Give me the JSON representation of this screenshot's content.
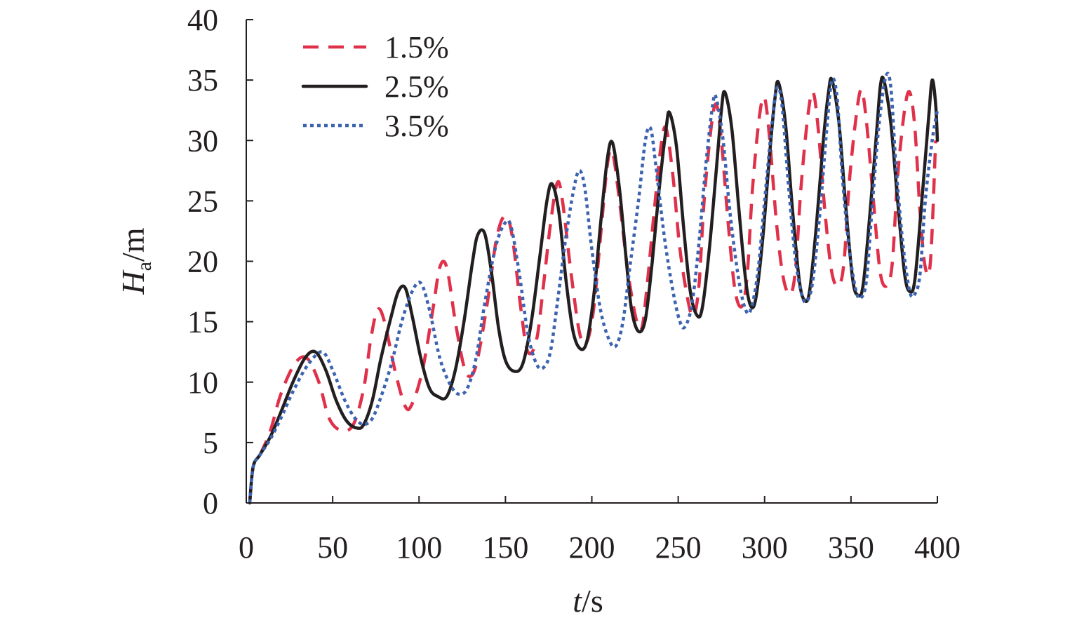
{
  "chart_data": {
    "type": "line",
    "title": "",
    "xlabel": {
      "var": "t",
      "unit": "/s"
    },
    "ylabel": {
      "var": "H",
      "sub": "a",
      "unit": "/m"
    },
    "xlim": [
      0,
      400
    ],
    "ylim": [
      0,
      40
    ],
    "xticks": [
      0,
      50,
      100,
      150,
      200,
      250,
      300,
      350,
      400
    ],
    "yticks": [
      0,
      5,
      10,
      15,
      20,
      25,
      30,
      35,
      40
    ],
    "grid": false,
    "legend_position": "top-left",
    "series": [
      {
        "name": "1.5%",
        "color": "#e0314b",
        "style": "dashed",
        "points": [
          [
            2,
            0
          ],
          [
            4,
            3
          ],
          [
            8,
            4
          ],
          [
            14,
            6
          ],
          [
            20,
            9
          ],
          [
            28,
            11.5
          ],
          [
            35,
            12
          ],
          [
            42,
            10
          ],
          [
            48,
            7
          ],
          [
            55,
            6
          ],
          [
            62,
            6.5
          ],
          [
            68,
            9.5
          ],
          [
            72,
            13.5
          ],
          [
            76,
            16
          ],
          [
            80,
            15
          ],
          [
            86,
            11
          ],
          [
            92,
            8
          ],
          [
            96,
            8.2
          ],
          [
            102,
            11
          ],
          [
            108,
            16
          ],
          [
            112,
            19.5
          ],
          [
            116,
            19.5
          ],
          [
            121,
            15
          ],
          [
            126,
            11.3
          ],
          [
            130,
            10.5
          ],
          [
            134,
            12
          ],
          [
            140,
            17
          ],
          [
            145,
            22
          ],
          [
            150,
            23.8
          ],
          [
            154,
            22
          ],
          [
            159,
            16
          ],
          [
            163,
            12.5
          ],
          [
            168,
            13.5
          ],
          [
            172,
            18
          ],
          [
            176,
            23
          ],
          [
            180,
            26.5
          ],
          [
            183,
            25
          ],
          [
            188,
            19
          ],
          [
            193,
            14
          ],
          [
            197,
            13.3
          ],
          [
            201,
            16
          ],
          [
            205,
            22
          ],
          [
            209,
            28
          ],
          [
            212,
            29
          ],
          [
            216,
            25
          ],
          [
            221,
            19
          ],
          [
            226,
            15
          ],
          [
            229,
            14.5
          ],
          [
            232,
            18
          ],
          [
            236,
            24
          ],
          [
            240,
            29.5
          ],
          [
            243,
            31
          ],
          [
            247,
            27
          ],
          [
            251,
            21
          ],
          [
            256,
            16.5
          ],
          [
            259,
            15.5
          ],
          [
            262,
            18
          ],
          [
            265,
            25
          ],
          [
            269,
            31
          ],
          [
            272,
            33
          ],
          [
            275,
            30
          ],
          [
            279,
            23
          ],
          [
            283,
            17.5
          ],
          [
            287,
            16.3
          ],
          [
            290,
            19
          ],
          [
            293,
            26
          ],
          [
            297,
            32
          ],
          [
            300,
            33.5
          ],
          [
            303,
            30
          ],
          [
            307,
            23
          ],
          [
            311,
            18.5
          ],
          [
            315,
            17.3
          ],
          [
            318,
            19.5
          ],
          [
            321,
            26
          ],
          [
            325,
            32
          ],
          [
            328,
            34
          ],
          [
            331,
            31
          ],
          [
            335,
            24
          ],
          [
            339,
            19
          ],
          [
            343,
            18
          ],
          [
            346,
            20
          ],
          [
            349,
            26.5
          ],
          [
            353,
            32
          ],
          [
            356,
            34.2
          ],
          [
            359,
            31.5
          ],
          [
            363,
            25
          ],
          [
            367,
            19
          ],
          [
            371,
            18
          ],
          [
            374,
            20
          ],
          [
            377,
            27
          ],
          [
            381,
            32.5
          ],
          [
            384,
            34
          ],
          [
            387,
            31
          ],
          [
            390,
            24
          ],
          [
            393,
            19.5
          ],
          [
            396,
            20
          ],
          [
            399,
            30
          ]
        ]
      },
      {
        "name": "2.5%",
        "color": "#231f20",
        "style": "solid",
        "points": [
          [
            2,
            0
          ],
          [
            4,
            3
          ],
          [
            8,
            4
          ],
          [
            14,
            5.5
          ],
          [
            20,
            7.5
          ],
          [
            27,
            10
          ],
          [
            34,
            12
          ],
          [
            40,
            12.5
          ],
          [
            46,
            11
          ],
          [
            52,
            8.5
          ],
          [
            58,
            6.8
          ],
          [
            64,
            6.2
          ],
          [
            68,
            6.5
          ],
          [
            73,
            8.5
          ],
          [
            78,
            12
          ],
          [
            84,
            15.5
          ],
          [
            88,
            17.5
          ],
          [
            92,
            17.8
          ],
          [
            96,
            15.5
          ],
          [
            101,
            12
          ],
          [
            106,
            9.5
          ],
          [
            111,
            8.8
          ],
          [
            116,
            8.8
          ],
          [
            121,
            11
          ],
          [
            126,
            15
          ],
          [
            131,
            20
          ],
          [
            134,
            22.2
          ],
          [
            138,
            22.3
          ],
          [
            142,
            19
          ],
          [
            146,
            14.5
          ],
          [
            150,
            11.8
          ],
          [
            155,
            10.9
          ],
          [
            160,
            11.5
          ],
          [
            165,
            15
          ],
          [
            170,
            20.5
          ],
          [
            174,
            25
          ],
          [
            177,
            26.4
          ],
          [
            181,
            24
          ],
          [
            185,
            18.5
          ],
          [
            189,
            14.3
          ],
          [
            193,
            12.8
          ],
          [
            197,
            13.3
          ],
          [
            201,
            17
          ],
          [
            205,
            23
          ],
          [
            209,
            28.5
          ],
          [
            212,
            29.8
          ],
          [
            216,
            26
          ],
          [
            220,
            20
          ],
          [
            223,
            16
          ],
          [
            227,
            14.2
          ],
          [
            231,
            15.2
          ],
          [
            235,
            20
          ],
          [
            239,
            26
          ],
          [
            243,
            31
          ],
          [
            245,
            32.3
          ],
          [
            249,
            29.5
          ],
          [
            253,
            23
          ],
          [
            257,
            17.5
          ],
          [
            261,
            15.5
          ],
          [
            264,
            16.2
          ],
          [
            268,
            21
          ],
          [
            272,
            27.5
          ],
          [
            275,
            32.5
          ],
          [
            277,
            34
          ],
          [
            281,
            31
          ],
          [
            285,
            24.5
          ],
          [
            289,
            18.5
          ],
          [
            292,
            16.3
          ],
          [
            295,
            17
          ],
          [
            299,
            22
          ],
          [
            303,
            29
          ],
          [
            306,
            33.5
          ],
          [
            308,
            34.8
          ],
          [
            312,
            31.5
          ],
          [
            316,
            24.5
          ],
          [
            320,
            18.5
          ],
          [
            323,
            16.8
          ],
          [
            326,
            17.5
          ],
          [
            330,
            23
          ],
          [
            334,
            30
          ],
          [
            337,
            34
          ],
          [
            339,
            35
          ],
          [
            343,
            31.5
          ],
          [
            347,
            24.5
          ],
          [
            351,
            18.5
          ],
          [
            354,
            17.2
          ],
          [
            357,
            18
          ],
          [
            361,
            24
          ],
          [
            365,
            31
          ],
          [
            367,
            34.5
          ],
          [
            369,
            35
          ],
          [
            373,
            31.5
          ],
          [
            377,
            25
          ],
          [
            381,
            19
          ],
          [
            384,
            17.5
          ],
          [
            387,
            18.5
          ],
          [
            391,
            25
          ],
          [
            395,
            32
          ],
          [
            397,
            35
          ],
          [
            399,
            33
          ],
          [
            400,
            30
          ]
        ]
      },
      {
        "name": "3.5%",
        "color": "#3c63b0",
        "style": "dotted",
        "points": [
          [
            2,
            0
          ],
          [
            4,
            3
          ],
          [
            8,
            4
          ],
          [
            14,
            5.3
          ],
          [
            20,
            7
          ],
          [
            28,
            9.5
          ],
          [
            36,
            11.5
          ],
          [
            44,
            12.5
          ],
          [
            50,
            11
          ],
          [
            57,
            8.5
          ],
          [
            63,
            7
          ],
          [
            68,
            6.5
          ],
          [
            73,
            7
          ],
          [
            78,
            8.8
          ],
          [
            84,
            11.5
          ],
          [
            90,
            15
          ],
          [
            96,
            17.5
          ],
          [
            101,
            18.2
          ],
          [
            106,
            16
          ],
          [
            112,
            12
          ],
          [
            118,
            9.8
          ],
          [
            123,
            9
          ],
          [
            128,
            9.5
          ],
          [
            133,
            12
          ],
          [
            138,
            16.5
          ],
          [
            144,
            21
          ],
          [
            149,
            23
          ],
          [
            153,
            23
          ],
          [
            158,
            19
          ],
          [
            163,
            14
          ],
          [
            168,
            11.5
          ],
          [
            172,
            11.2
          ],
          [
            176,
            12.5
          ],
          [
            180,
            16.5
          ],
          [
            185,
            22
          ],
          [
            190,
            26.3
          ],
          [
            193,
            27.5
          ],
          [
            196,
            26
          ],
          [
            200,
            21
          ],
          [
            205,
            16
          ],
          [
            210,
            13.5
          ],
          [
            214,
            13
          ],
          [
            218,
            15
          ],
          [
            222,
            19.5
          ],
          [
            227,
            25
          ],
          [
            231,
            30
          ],
          [
            234,
            31
          ],
          [
            237,
            28
          ],
          [
            242,
            22
          ],
          [
            247,
            17.5
          ],
          [
            251,
            15
          ],
          [
            254,
            14.6
          ],
          [
            258,
            16.5
          ],
          [
            262,
            21.5
          ],
          [
            266,
            28
          ],
          [
            270,
            33
          ],
          [
            272,
            33.5
          ],
          [
            276,
            30
          ],
          [
            280,
            24
          ],
          [
            285,
            18.5
          ],
          [
            289,
            16
          ],
          [
            292,
            16
          ],
          [
            296,
            19
          ],
          [
            300,
            25
          ],
          [
            304,
            31
          ],
          [
            307,
            34.3
          ],
          [
            310,
            33
          ],
          [
            314,
            26
          ],
          [
            318,
            20
          ],
          [
            322,
            17
          ],
          [
            325,
            16.8
          ],
          [
            328,
            18.5
          ],
          [
            332,
            24
          ],
          [
            336,
            31
          ],
          [
            339,
            35
          ],
          [
            342,
            33.5
          ],
          [
            345,
            27
          ],
          [
            349,
            21
          ],
          [
            353,
            17.5
          ],
          [
            356,
            17
          ],
          [
            359,
            18.5
          ],
          [
            362,
            24
          ],
          [
            366,
            31
          ],
          [
            370,
            35.2
          ],
          [
            373,
            34.5
          ],
          [
            376,
            28
          ],
          [
            380,
            21.5
          ],
          [
            384,
            17.5
          ],
          [
            387,
            17.3
          ],
          [
            390,
            19
          ],
          [
            393,
            25
          ],
          [
            397,
            30
          ],
          [
            400,
            32.5
          ]
        ]
      }
    ]
  }
}
